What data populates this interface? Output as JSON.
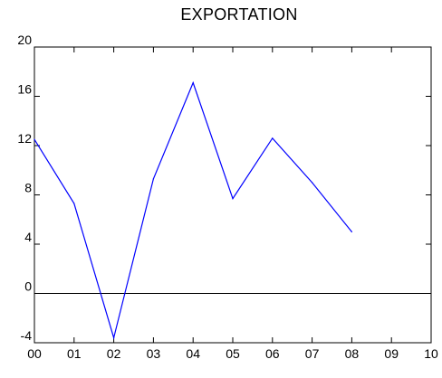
{
  "chart_data": {
    "type": "line",
    "title": "EXPORTATION",
    "x_categories": [
      "00",
      "01",
      "02",
      "03",
      "04",
      "05",
      "06",
      "07",
      "08",
      "09",
      "10"
    ],
    "x_ticks": [
      "00",
      "01",
      "02",
      "03",
      "04",
      "05",
      "06",
      "07",
      "08",
      "09",
      "10"
    ],
    "y_ticks": [
      "-4",
      "0",
      "4",
      "8",
      "12",
      "16",
      "20"
    ],
    "ylim": [
      -4,
      20
    ],
    "xlim": [
      0,
      10
    ],
    "series": [
      {
        "x": [
          "00",
          "01",
          "02",
          "03",
          "04",
          "05",
          "06",
          "07",
          "08"
        ],
        "values": [
          12.5,
          7.3,
          -3.6,
          9.3,
          17.1,
          7.7,
          12.6,
          9.0,
          5.0
        ],
        "color": "#0000ff"
      }
    ],
    "reference_line": {
      "y": 0,
      "color": "#000000"
    },
    "grid": false,
    "legend": "none"
  }
}
